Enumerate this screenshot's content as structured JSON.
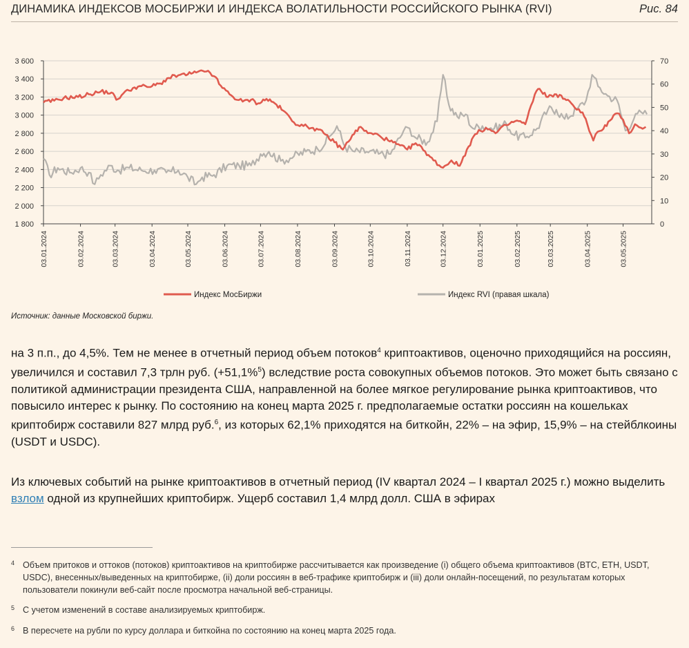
{
  "figure": {
    "title": "ДИНАМИКА ИНДЕКСОВ МОСБИРЖИ И ИНДЕКСА ВОЛАТИЛЬНОСТИ РОССИЙСКОГО РЫНКА (RVI)",
    "number": "Рис. 84",
    "source": "Источник: данные Московской биржи."
  },
  "chart_data": {
    "type": "line",
    "left_axis": {
      "ylim": [
        1800,
        3600
      ],
      "ticks": [
        "1 800",
        "2 000",
        "2 200",
        "2 400",
        "2 600",
        "2 800",
        "3 000",
        "3 200",
        "3 400",
        "3 600"
      ]
    },
    "right_axis": {
      "ylim": [
        0,
        70
      ],
      "ticks": [
        "0",
        "10",
        "20",
        "30",
        "40",
        "50",
        "60",
        "70"
      ]
    },
    "x_ticks": [
      "03.01.2024",
      "03.02.2024",
      "03.03.2024",
      "03.04.2024",
      "03.05.2024",
      "03.06.2024",
      "03.07.2024",
      "03.08.2024",
      "03.09.2024",
      "03.10.2024",
      "03.11.2024",
      "03.12.2024",
      "03.01.2025",
      "03.02.2025",
      "03.03.2025",
      "03.04.2025",
      "03.05.2025"
    ],
    "grid": true,
    "legend_position": "bottom",
    "colors": {
      "moex": "#e05a4e",
      "rvi": "#b5b2ad",
      "grid": "#d6d2cc",
      "axis": "#444444"
    },
    "series": [
      {
        "name": "Индекс МосБиржи",
        "axis": "left",
        "points": [
          [
            "2024-01-03",
            3140
          ],
          [
            "2024-01-12",
            3160
          ],
          [
            "2024-01-20",
            3190
          ],
          [
            "2024-02-01",
            3200
          ],
          [
            "2024-02-10",
            3230
          ],
          [
            "2024-02-20",
            3260
          ],
          [
            "2024-02-29",
            3250
          ],
          [
            "2024-03-04",
            3170
          ],
          [
            "2024-03-10",
            3240
          ],
          [
            "2024-03-18",
            3300
          ],
          [
            "2024-03-25",
            3320
          ],
          [
            "2024-03-30",
            3310
          ],
          [
            "2024-04-03",
            3320
          ],
          [
            "2024-04-10",
            3350
          ],
          [
            "2024-04-17",
            3410
          ],
          [
            "2024-04-25",
            3440
          ],
          [
            "2024-05-03",
            3450
          ],
          [
            "2024-05-10",
            3470
          ],
          [
            "2024-05-17",
            3480
          ],
          [
            "2024-05-20",
            3490
          ],
          [
            "2024-05-25",
            3430
          ],
          [
            "2024-06-01",
            3300
          ],
          [
            "2024-06-10",
            3200
          ],
          [
            "2024-06-18",
            3150
          ],
          [
            "2024-06-25",
            3170
          ],
          [
            "2024-07-01",
            3130
          ],
          [
            "2024-07-08",
            3180
          ],
          [
            "2024-07-15",
            3130
          ],
          [
            "2024-07-22",
            3050
          ],
          [
            "2024-07-31",
            2920
          ],
          [
            "2024-08-08",
            2880
          ],
          [
            "2024-08-16",
            2860
          ],
          [
            "2024-08-25",
            2800
          ],
          [
            "2024-09-03",
            2700
          ],
          [
            "2024-09-10",
            2620
          ],
          [
            "2024-09-18",
            2780
          ],
          [
            "2024-09-25",
            2870
          ],
          [
            "2024-10-01",
            2800
          ],
          [
            "2024-10-10",
            2780
          ],
          [
            "2024-10-18",
            2720
          ],
          [
            "2024-10-25",
            2680
          ],
          [
            "2024-11-03",
            2620
          ],
          [
            "2024-11-10",
            2690
          ],
          [
            "2024-11-18",
            2600
          ],
          [
            "2024-11-25",
            2500
          ],
          [
            "2024-12-03",
            2420
          ],
          [
            "2024-12-10",
            2500
          ],
          [
            "2024-12-17",
            2440
          ],
          [
            "2024-12-23",
            2620
          ],
          [
            "2024-12-30",
            2790
          ],
          [
            "2025-01-08",
            2860
          ],
          [
            "2025-01-16",
            2800
          ],
          [
            "2025-01-25",
            2890
          ],
          [
            "2025-02-03",
            2940
          ],
          [
            "2025-02-10",
            2900
          ],
          [
            "2025-02-18",
            3230
          ],
          [
            "2025-02-22",
            3290
          ],
          [
            "2025-03-01",
            3200
          ],
          [
            "2025-03-08",
            3230
          ],
          [
            "2025-03-15",
            3180
          ],
          [
            "2025-03-22",
            3110
          ],
          [
            "2025-03-30",
            3030
          ],
          [
            "2025-04-03",
            2900
          ],
          [
            "2025-04-08",
            2720
          ],
          [
            "2025-04-10",
            2790
          ],
          [
            "2025-04-15",
            2830
          ],
          [
            "2025-04-22",
            2940
          ],
          [
            "2025-04-28",
            3020
          ],
          [
            "2025-05-03",
            2950
          ],
          [
            "2025-05-08",
            2800
          ],
          [
            "2025-05-13",
            2900
          ],
          [
            "2025-05-18",
            2860
          ],
          [
            "2025-05-22",
            2870
          ]
        ]
      },
      {
        "name": "Индекс RVI (правая шкала)",
        "axis": "right",
        "points": [
          [
            "2024-01-03",
            28
          ],
          [
            "2024-01-08",
            21
          ],
          [
            "2024-01-15",
            24
          ],
          [
            "2024-01-25",
            22
          ],
          [
            "2024-02-03",
            24
          ],
          [
            "2024-02-10",
            22
          ],
          [
            "2024-02-15",
            17
          ],
          [
            "2024-02-20",
            21
          ],
          [
            "2024-02-28",
            25
          ],
          [
            "2024-03-05",
            23
          ],
          [
            "2024-03-15",
            24
          ],
          [
            "2024-03-25",
            23
          ],
          [
            "2024-04-05",
            23
          ],
          [
            "2024-04-15",
            22
          ],
          [
            "2024-04-25",
            23
          ],
          [
            "2024-05-03",
            20
          ],
          [
            "2024-05-10",
            17
          ],
          [
            "2024-05-15",
            20
          ],
          [
            "2024-05-25",
            21
          ],
          [
            "2024-06-05",
            25
          ],
          [
            "2024-06-15",
            25
          ],
          [
            "2024-06-25",
            25
          ],
          [
            "2024-07-03",
            30
          ],
          [
            "2024-07-10",
            31
          ],
          [
            "2024-07-20",
            27
          ],
          [
            "2024-07-31",
            29
          ],
          [
            "2024-08-10",
            31
          ],
          [
            "2024-08-20",
            32
          ],
          [
            "2024-08-31",
            38
          ],
          [
            "2024-09-05",
            42
          ],
          [
            "2024-09-12",
            33
          ],
          [
            "2024-09-20",
            31
          ],
          [
            "2024-09-30",
            31
          ],
          [
            "2024-10-10",
            30
          ],
          [
            "2024-10-20",
            30
          ],
          [
            "2024-10-31",
            40
          ],
          [
            "2024-11-05",
            41
          ],
          [
            "2024-11-10",
            37
          ],
          [
            "2024-11-20",
            35
          ],
          [
            "2024-11-28",
            44
          ],
          [
            "2024-12-03",
            64
          ],
          [
            "2024-12-08",
            51
          ],
          [
            "2024-12-15",
            46
          ],
          [
            "2024-12-22",
            47
          ],
          [
            "2024-12-28",
            41
          ],
          [
            "2025-01-05",
            42
          ],
          [
            "2025-01-15",
            41
          ],
          [
            "2025-01-25",
            43
          ],
          [
            "2025-02-01",
            38
          ],
          [
            "2025-02-10",
            37
          ],
          [
            "2025-02-20",
            41
          ],
          [
            "2025-03-01",
            49
          ],
          [
            "2025-03-08",
            49
          ],
          [
            "2025-03-15",
            45
          ],
          [
            "2025-03-25",
            49
          ],
          [
            "2025-04-02",
            53
          ],
          [
            "2025-04-07",
            64
          ],
          [
            "2025-04-12",
            59
          ],
          [
            "2025-04-20",
            55
          ],
          [
            "2025-04-28",
            53
          ],
          [
            "2025-05-05",
            40
          ],
          [
            "2025-05-12",
            45
          ],
          [
            "2025-05-18",
            48
          ],
          [
            "2025-05-23",
            47
          ]
        ]
      }
    ]
  },
  "text": {
    "p1_a": "на 3 п.п., до 4,5%. Тем не менее в отчетный период объем потоков",
    "p1_sup4": "4",
    "p1_b": " криптоактивов, оценочно приходящийся на россиян, увеличился и составил 7,3 трлн руб. (+51,1%",
    "p1_sup5": "5",
    "p1_c": ") вследствие роста совокупных объемов потоков. Это может быть связано с политикой администрации президента США, направленной на более мягкое регулирование рынка криптоактивов, что повысило интерес к рынку. По состоянию на конец марта 2025 г. предполагаемые остатки россиян на кошельках криптобирж составили 827 млрд руб.",
    "p1_sup6": "6",
    "p1_d": ", из которых 62,1% приходятся на биткойн, 22% – на эфир, 15,9% – на стейблкоины (USDT и USDC).",
    "p2_a": "Из ключевых событий на рынке криптоактивов в отчетный период (IV квартал 2024 – I квартал 2025 г.) можно выделить ",
    "p2_link": "взлом",
    "p2_b": " одной из крупнейших криптобирж. Ущерб составил 1,4 млрд долл. США в эфирах"
  },
  "footnotes": [
    {
      "mark": "4",
      "text": "Объем притоков и оттоков (потоков) криптоактивов на криптобирже рассчитывается как произведение (i) общего объема криптоактивов (BTC, ETH, USDT, USDC), внесенных/выведенных на криптобирже, (ii) доли россиян в веб-трафике криптобирж и (iii) доли онлайн-посещений, по результатам которых пользователи покинули веб-сайт после просмотра начальной веб-страницы."
    },
    {
      "mark": "5",
      "text": "С учетом изменений в составе анализируемых криптобирж."
    },
    {
      "mark": "6",
      "text": "В пересчете на рубли по курсу доллара и биткойна по состоянию на конец марта 2025 года."
    }
  ]
}
